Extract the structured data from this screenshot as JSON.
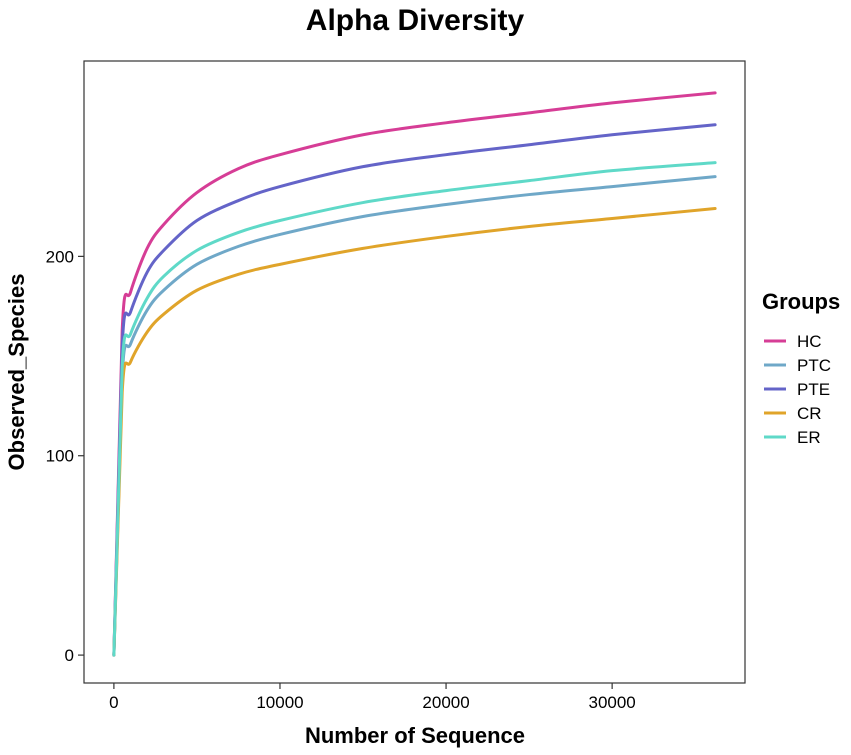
{
  "chart_data": {
    "type": "line",
    "title": "Alpha Diversity",
    "xlabel": "Number of Sequence",
    "ylabel": "Observed_Species",
    "xlim": [
      -1800,
      38000
    ],
    "ylim": [
      -14,
      298
    ],
    "x_ticks": [
      0,
      10000,
      20000,
      30000
    ],
    "x_tick_labels": [
      "0",
      "10000",
      "20000",
      "30000"
    ],
    "y_ticks": [
      0,
      100,
      200
    ],
    "y_tick_labels": [
      "0",
      "100",
      "200"
    ],
    "grid": false,
    "legend": {
      "title": "Groups",
      "placement": "right"
    },
    "x": [
      0,
      500,
      1000,
      2000,
      3000,
      5000,
      7500,
      10000,
      15000,
      20000,
      25000,
      30000,
      36200
    ],
    "series": [
      {
        "name": "HC",
        "color": "#d63d96",
        "values": [
          0,
          163,
          182,
          204,
          216,
          232,
          244,
          251,
          261,
          267,
          272,
          277,
          282
        ]
      },
      {
        "name": "PTC",
        "color": "#6fa8c8",
        "values": [
          0,
          140,
          156,
          173,
          183,
          196,
          205,
          211,
          220,
          226,
          231,
          235,
          240
        ]
      },
      {
        "name": "PTE",
        "color": "#6464c8",
        "values": [
          0,
          155,
          172,
          192,
          203,
          218,
          228,
          235,
          245,
          251,
          256,
          261,
          266
        ]
      },
      {
        "name": "CR",
        "color": "#e0a42a",
        "values": [
          0,
          132,
          147,
          162,
          171,
          183,
          191,
          196,
          204,
          210,
          215,
          219,
          224
        ]
      },
      {
        "name": "ER",
        "color": "#5fd9c8",
        "values": [
          0,
          145,
          161,
          179,
          190,
          203,
          212,
          218,
          227,
          233,
          238,
          243,
          247
        ]
      }
    ]
  }
}
